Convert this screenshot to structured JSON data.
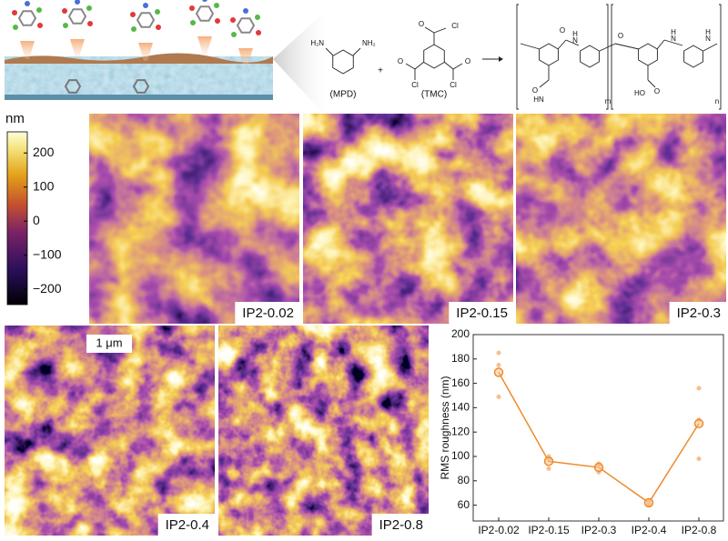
{
  "figure": {
    "scheme": {
      "mpd_label": "(MPD)",
      "tmc_label": "(TMC)",
      "plus": "+",
      "mpd_atoms": [
        "H₂N",
        "NH₂"
      ],
      "tmc_atoms": [
        "O",
        "Cl",
        "O",
        "Cl",
        "O",
        "Cl"
      ],
      "polymer_atoms": [
        "O",
        "H",
        "N",
        "O",
        "HN",
        "O",
        "H",
        "N",
        "O",
        "HO",
        "H",
        "N",
        "m",
        "n"
      ]
    },
    "colorbar": {
      "unit": "nm",
      "lim": [
        -245,
        262
      ],
      "ticks": [
        200,
        100,
        0,
        {
          "value": -100,
          "label": "−100"
        },
        {
          "value": -200,
          "label": "−200"
        }
      ]
    },
    "panels": [
      "IP2-0.02",
      "IP2-0.15",
      "IP2-0.3",
      "IP2-0.4",
      "IP2-0.8"
    ],
    "scale_bar": "1 μm"
  },
  "chart_data": {
    "type": "line",
    "categories": [
      "IP2-0.02",
      "IP2-0.15",
      "IP2-0.3",
      "IP2-0.4",
      "IP2-0.8"
    ],
    "values": [
      169,
      96,
      91,
      62,
      127
    ],
    "color": "#ef8a2a",
    "points": [
      [
        185,
        175,
        149
      ],
      [
        100,
        98,
        90
      ],
      [
        94,
        92,
        87
      ],
      [
        63,
        62,
        61
      ],
      [
        156,
        130,
        98
      ]
    ],
    "points_color": "#f6bf8c",
    "y_label": "RMS roughness (nm)",
    "ylim": [
      47,
      200
    ],
    "yticks": [
      60,
      80,
      100,
      120,
      140,
      160,
      180,
      200
    ]
  }
}
